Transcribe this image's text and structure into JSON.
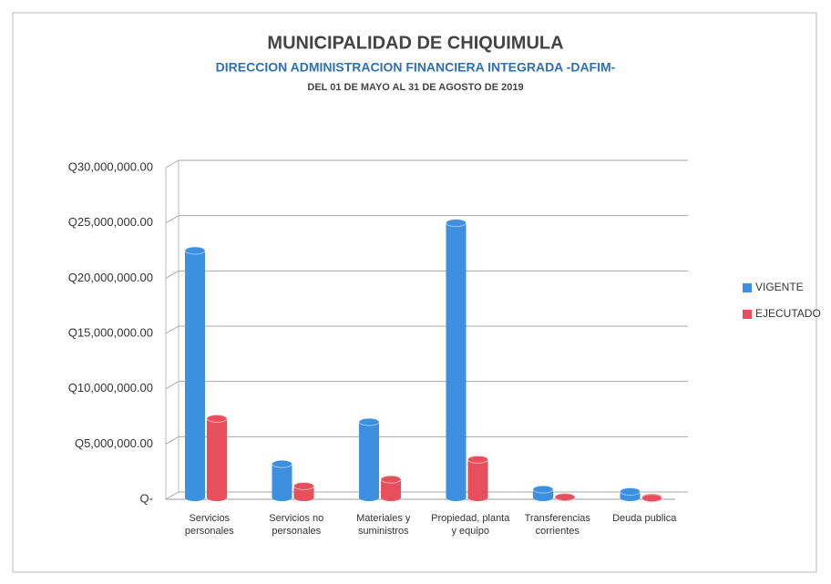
{
  "chart_data": {
    "type": "bar",
    "title": "MUNICIPALIDAD DE CHIQUIMULA",
    "subtitle": "DIRECCION ADMINISTRACION FINANCIERA INTEGRADA -DAFIM-",
    "period": "DEL 01 DE MAYO AL 31 DE AGOSTO DE 2019",
    "categories": [
      "Servicios personales",
      "Servicios no personales",
      "Materiales y suministros",
      "Propiedad, planta y equipo",
      "Transferencias corrientes",
      "Deuda publica"
    ],
    "series": [
      {
        "name": "VIGENTE",
        "color": "#3d8fe0",
        "values": [
          22500000,
          3200000,
          7000000,
          25000000,
          900000,
          700000
        ]
      },
      {
        "name": "EJECUTADO",
        "color": "#e5505c",
        "values": [
          7300000,
          1200000,
          1800000,
          3600000,
          200000,
          100000
        ]
      }
    ],
    "ylim": [
      0,
      30000000
    ],
    "yticks": [
      {
        "value": 0,
        "label": "Q-"
      },
      {
        "value": 5000000,
        "label": "Q5,000,000.00"
      },
      {
        "value": 10000000,
        "label": "Q10,000,000.00"
      },
      {
        "value": 15000000,
        "label": "Q15,000,000.00"
      },
      {
        "value": 20000000,
        "label": "Q20,000,000.00"
      },
      {
        "value": 25000000,
        "label": "Q25,000,000.00"
      },
      {
        "value": 30000000,
        "label": "Q30,000,000.00"
      }
    ],
    "grid": true,
    "legend": "right"
  }
}
